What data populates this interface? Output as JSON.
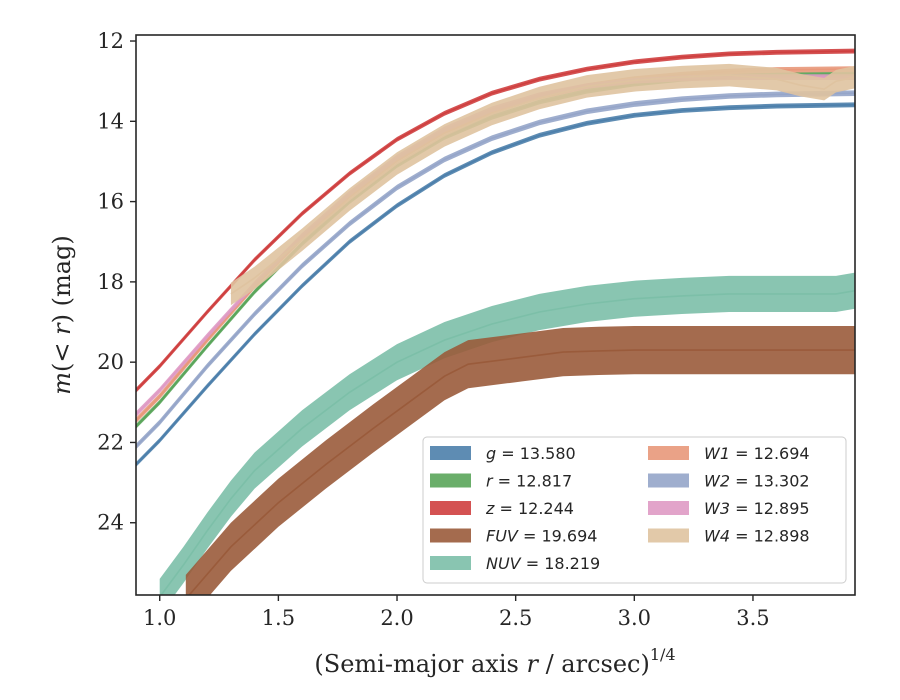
{
  "chart_data": {
    "type": "line",
    "xlabel": "(Semi-major axis r / arcsec)",
    "xlabel_parts": {
      "pre": "(Semi-major axis ",
      "var": "r",
      "post": " / arcsec)",
      "sup": "1/4"
    },
    "ylabel": "m(< r) (mag)",
    "ylabel_parts": {
      "var": "m",
      "mid": "(< ",
      "var2": "r",
      "post": ") (mag)"
    },
    "xlim": [
      0.9,
      3.93
    ],
    "ylim": [
      25.8,
      11.85
    ],
    "y_inverted": true,
    "xticks": [
      1.0,
      1.5,
      2.0,
      2.5,
      3.0,
      3.5
    ],
    "xtick_labels": [
      "1.0",
      "1.5",
      "2.0",
      "2.5",
      "3.0",
      "3.5"
    ],
    "yticks": [
      12,
      14,
      16,
      18,
      20,
      22,
      24
    ],
    "ytick_labels": [
      "12",
      "14",
      "16",
      "18",
      "20",
      "22",
      "24"
    ],
    "legend_position": "lower-right",
    "series": [
      {
        "name": "g",
        "label_value": "13.580",
        "color": "#4c7fab",
        "band": 0.06,
        "points": [
          [
            0.9,
            22.55
          ],
          [
            1.0,
            21.95
          ],
          [
            1.2,
            20.6
          ],
          [
            1.4,
            19.3
          ],
          [
            1.6,
            18.1
          ],
          [
            1.8,
            17.0
          ],
          [
            2.0,
            16.1
          ],
          [
            2.2,
            15.35
          ],
          [
            2.4,
            14.78
          ],
          [
            2.6,
            14.35
          ],
          [
            2.8,
            14.05
          ],
          [
            3.0,
            13.85
          ],
          [
            3.2,
            13.73
          ],
          [
            3.4,
            13.66
          ],
          [
            3.6,
            13.62
          ],
          [
            3.93,
            13.59
          ]
        ]
      },
      {
        "name": "r",
        "label_value": "12.817",
        "color": "#5aa55a",
        "band": 0.06,
        "points": [
          [
            0.9,
            21.6
          ],
          [
            1.0,
            21.0
          ],
          [
            1.2,
            19.6
          ],
          [
            1.4,
            18.25
          ],
          [
            1.6,
            17.05
          ],
          [
            1.8,
            16.0
          ],
          [
            2.0,
            15.1
          ],
          [
            2.2,
            14.4
          ],
          [
            2.4,
            13.9
          ],
          [
            2.6,
            13.52
          ],
          [
            2.8,
            13.25
          ],
          [
            3.0,
            13.07
          ],
          [
            3.2,
            12.95
          ],
          [
            3.4,
            12.88
          ],
          [
            3.6,
            12.84
          ],
          [
            3.93,
            12.82
          ]
        ]
      },
      {
        "name": "z",
        "label_value": "12.244",
        "color": "#cf3f3f",
        "band": 0.06,
        "points": [
          [
            0.9,
            20.7
          ],
          [
            1.0,
            20.1
          ],
          [
            1.2,
            18.75
          ],
          [
            1.4,
            17.45
          ],
          [
            1.6,
            16.3
          ],
          [
            1.8,
            15.3
          ],
          [
            2.0,
            14.45
          ],
          [
            2.2,
            13.8
          ],
          [
            2.4,
            13.3
          ],
          [
            2.6,
            12.95
          ],
          [
            2.8,
            12.7
          ],
          [
            3.0,
            12.52
          ],
          [
            3.2,
            12.4
          ],
          [
            3.4,
            12.32
          ],
          [
            3.6,
            12.28
          ],
          [
            3.93,
            12.25
          ]
        ]
      },
      {
        "name": "W1",
        "label_value": "12.694",
        "color": "#e8987a",
        "band": 0.07,
        "points": [
          [
            0.9,
            21.45
          ],
          [
            1.0,
            20.85
          ],
          [
            1.2,
            19.45
          ],
          [
            1.4,
            18.1
          ],
          [
            1.6,
            16.9
          ],
          [
            1.8,
            15.85
          ],
          [
            2.0,
            14.95
          ],
          [
            2.2,
            14.25
          ],
          [
            2.4,
            13.75
          ],
          [
            2.6,
            13.38
          ],
          [
            2.8,
            13.12
          ],
          [
            3.0,
            12.95
          ],
          [
            3.2,
            12.84
          ],
          [
            3.4,
            12.76
          ],
          [
            3.6,
            12.72
          ],
          [
            3.93,
            12.7
          ]
        ]
      },
      {
        "name": "W2",
        "label_value": "13.302",
        "color": "#95a5c9",
        "band": 0.07,
        "points": [
          [
            0.9,
            22.1
          ],
          [
            1.0,
            21.5
          ],
          [
            1.2,
            20.1
          ],
          [
            1.4,
            18.8
          ],
          [
            1.6,
            17.6
          ],
          [
            1.8,
            16.55
          ],
          [
            2.0,
            15.65
          ],
          [
            2.2,
            14.95
          ],
          [
            2.4,
            14.42
          ],
          [
            2.6,
            14.03
          ],
          [
            2.8,
            13.75
          ],
          [
            3.0,
            13.57
          ],
          [
            3.2,
            13.45
          ],
          [
            3.4,
            13.37
          ],
          [
            3.6,
            13.33
          ],
          [
            3.93,
            13.3
          ]
        ]
      },
      {
        "name": "W3",
        "label_value": "12.895",
        "color": "#df9ac4",
        "band": 0.07,
        "points": [
          [
            0.9,
            21.3
          ],
          [
            1.0,
            20.7
          ],
          [
            1.2,
            19.35
          ],
          [
            1.4,
            18.05
          ],
          [
            1.6,
            16.85
          ],
          [
            1.8,
            15.8
          ],
          [
            2.0,
            14.9
          ],
          [
            2.2,
            14.2
          ],
          [
            2.4,
            13.7
          ],
          [
            2.6,
            13.35
          ],
          [
            2.8,
            13.12
          ],
          [
            3.0,
            12.99
          ],
          [
            3.2,
            12.93
          ],
          [
            3.4,
            12.9
          ],
          [
            3.6,
            12.9
          ],
          [
            3.93,
            12.9
          ]
        ]
      },
      {
        "name": "W4",
        "label_value": "12.898",
        "color": "#dfc3a0",
        "band": 0.28,
        "points": [
          [
            1.3,
            18.3
          ],
          [
            1.4,
            17.9
          ],
          [
            1.6,
            16.95
          ],
          [
            1.8,
            15.95
          ],
          [
            2.0,
            15.05
          ],
          [
            2.2,
            14.35
          ],
          [
            2.4,
            13.82
          ],
          [
            2.6,
            13.42
          ],
          [
            2.8,
            13.13
          ],
          [
            3.0,
            12.98
          ],
          [
            3.2,
            12.9
          ],
          [
            3.4,
            12.85
          ],
          [
            3.6,
            12.95
          ],
          [
            3.7,
            13.1
          ],
          [
            3.8,
            13.2
          ],
          [
            3.85,
            13.0
          ],
          [
            3.93,
            12.9
          ]
        ]
      },
      {
        "name": "NUV",
        "label_value": "18.219",
        "color": "#7cbfa8",
        "band": 0.45,
        "points": [
          [
            1.0,
            25.85
          ],
          [
            1.1,
            25.05
          ],
          [
            1.2,
            24.2
          ],
          [
            1.3,
            23.4
          ],
          [
            1.4,
            22.7
          ],
          [
            1.6,
            21.65
          ],
          [
            1.8,
            20.75
          ],
          [
            2.0,
            20.0
          ],
          [
            2.2,
            19.45
          ],
          [
            2.4,
            19.05
          ],
          [
            2.6,
            18.75
          ],
          [
            2.8,
            18.55
          ],
          [
            3.0,
            18.42
          ],
          [
            3.2,
            18.35
          ],
          [
            3.4,
            18.3
          ],
          [
            3.6,
            18.3
          ],
          [
            3.85,
            18.3
          ],
          [
            3.93,
            18.22
          ]
        ]
      },
      {
        "name": "FUV",
        "label_value": "19.694",
        "color": "#9a5b3b",
        "band": 0.6,
        "points": [
          [
            1.11,
            25.9
          ],
          [
            1.3,
            24.6
          ],
          [
            1.5,
            23.5
          ],
          [
            1.7,
            22.55
          ],
          [
            1.9,
            21.65
          ],
          [
            2.05,
            21.0
          ],
          [
            2.2,
            20.35
          ],
          [
            2.3,
            20.05
          ],
          [
            2.5,
            19.9
          ],
          [
            2.7,
            19.75
          ],
          [
            2.85,
            19.72
          ],
          [
            3.0,
            19.7
          ],
          [
            3.93,
            19.7
          ]
        ]
      }
    ]
  }
}
